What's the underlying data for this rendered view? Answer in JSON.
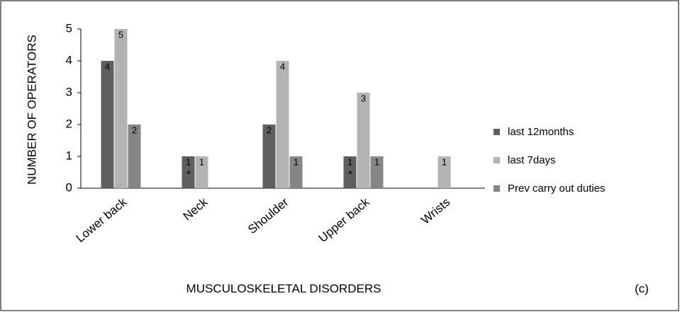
{
  "chart_data": {
    "type": "bar",
    "xlabel": "MUSCULOSKELETAL DISORDERS",
    "ylabel": "NUMBER OF OPERATORS",
    "categories": [
      "Lower back",
      "Neck",
      "Shoulder",
      "Upper back",
      "Wrists"
    ],
    "series": [
      {
        "name": "last 12months",
        "color": "#5f5f5f",
        "values": [
          4,
          1,
          2,
          1,
          null
        ]
      },
      {
        "name": "last 7days",
        "color": "#b3b3b3",
        "values": [
          5,
          1,
          4,
          3,
          1
        ]
      },
      {
        "name": "Prev carry out duties",
        "color": "#868686",
        "values": [
          2,
          null,
          1,
          1,
          null
        ]
      }
    ],
    "ylim": [
      0,
      5
    ],
    "yticks": [
      0,
      1,
      2,
      3,
      4,
      5
    ],
    "grid": false,
    "legend": "right",
    "annotations": [
      "*",
      "*",
      "(c)"
    ]
  }
}
